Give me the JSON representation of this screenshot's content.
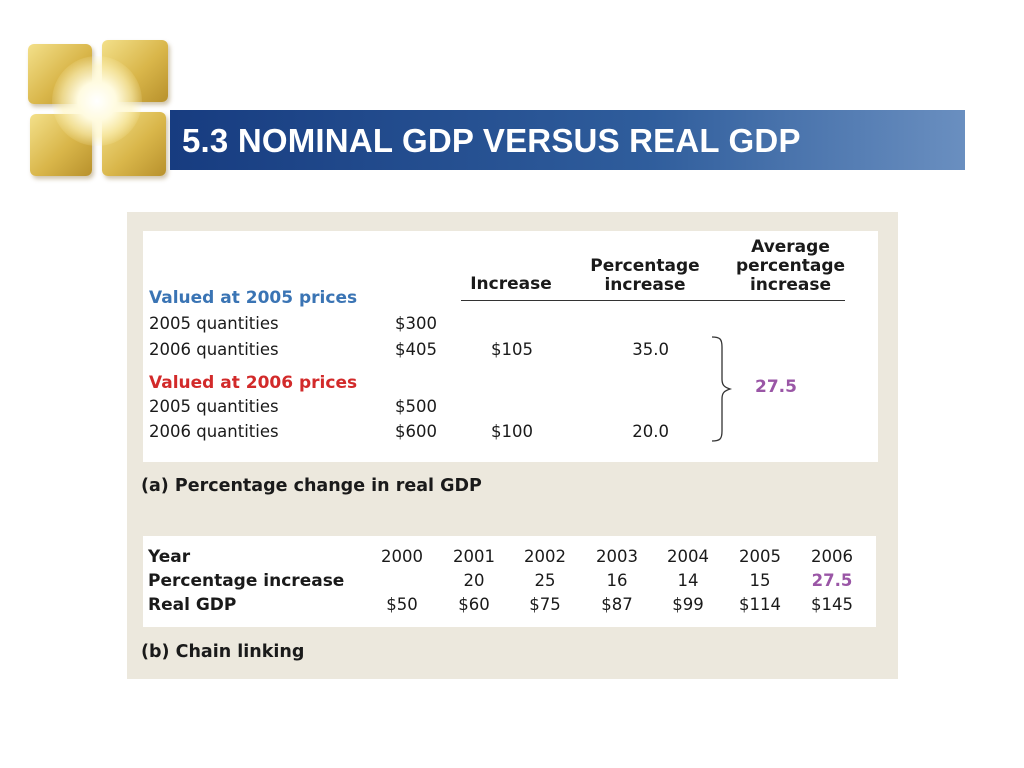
{
  "title": "5.3 NOMINAL GDP VERSUS REAL GDP",
  "logo": {
    "icon": "golden-window-logo"
  },
  "table_a": {
    "headers": {
      "increase": "Increase",
      "percentage_increase": [
        "Percentage",
        "increase"
      ],
      "average_percentage_increase": [
        "Average",
        "percentage",
        "increase"
      ]
    },
    "section_2005": {
      "label": "Valued at 2005 prices",
      "rows": [
        {
          "label": "2005 quantities",
          "value": "$300",
          "increase": "",
          "pct": ""
        },
        {
          "label": "2006 quantities",
          "value": "$405",
          "increase": "$105",
          "pct": "35.0"
        }
      ]
    },
    "section_2006": {
      "label": "Valued at 2006 prices",
      "rows": [
        {
          "label": "2005 quantities",
          "value": "$500",
          "increase": "",
          "pct": ""
        },
        {
          "label": "2006 quantities",
          "value": "$600",
          "increase": "$100",
          "pct": "20.0"
        }
      ]
    },
    "average": "27.5",
    "caption": "(a) Percentage change in real GDP",
    "colors": {
      "section_2005": "#3a74b4",
      "section_2006": "#d22a2a",
      "average": "#9a56a6"
    }
  },
  "table_b": {
    "row_labels": {
      "year": "Year",
      "pct": "Percentage increase",
      "gdp": "Real GDP"
    },
    "years": [
      "2000",
      "2001",
      "2002",
      "2003",
      "2004",
      "2005",
      "2006"
    ],
    "pct": [
      "",
      "20",
      "25",
      "16",
      "14",
      "15",
      "27.5"
    ],
    "gdp": [
      "$50",
      "$60",
      "$75",
      "$87",
      "$99",
      "$114",
      "$145"
    ],
    "caption": "(b) Chain linking"
  }
}
